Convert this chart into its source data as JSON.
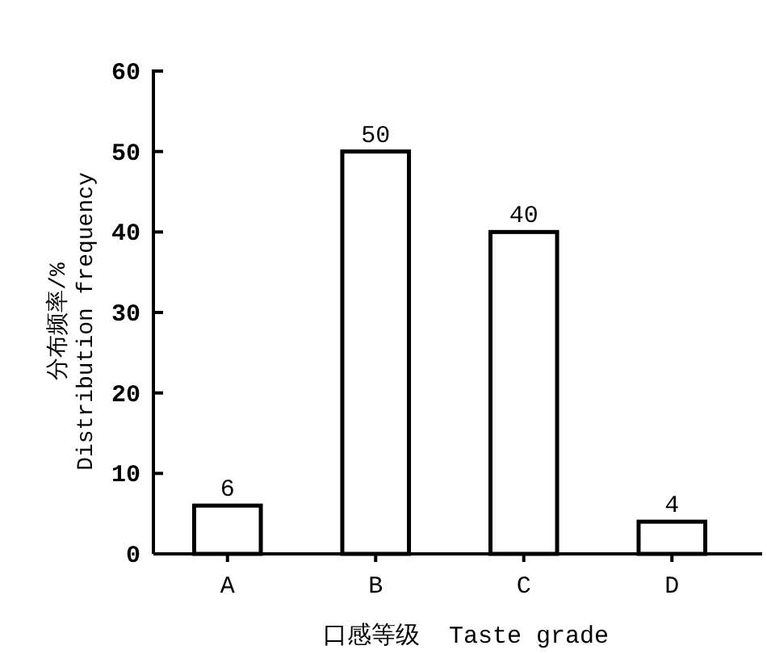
{
  "chart_data": {
    "type": "bar",
    "xlabel": "口感等级  Taste grade",
    "ylabel": "分布频率/%\nDistribution frequency",
    "categories": [
      "A",
      "B",
      "C",
      "D"
    ],
    "values": [
      6,
      50,
      40,
      4
    ],
    "color": "#ffffff",
    "ylim": [
      0,
      60
    ],
    "yticks": [
      0,
      10,
      20,
      30,
      40,
      50,
      60
    ],
    "data_labels": true
  }
}
